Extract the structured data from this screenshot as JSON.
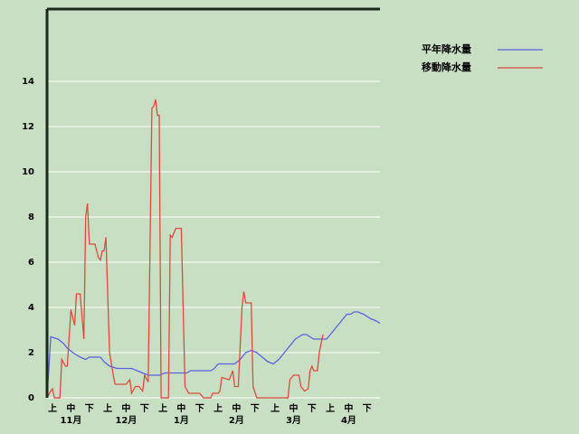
{
  "chart_data": {
    "type": "line",
    "series": [
      {
        "name": "平年降水量",
        "color": "#5a62e0",
        "x": [
          0,
          2,
          6,
          9,
          11,
          14,
          18,
          21,
          23,
          29,
          31,
          34,
          38,
          46,
          49,
          52,
          55,
          61,
          64,
          76,
          78,
          89,
          91,
          93,
          102,
          105,
          108,
          111,
          114,
          117,
          120,
          123,
          126,
          129,
          132,
          135,
          137,
          139,
          141,
          143,
          145,
          152,
          153,
          156,
          160,
          163,
          165,
          167,
          169,
          172,
          176,
          179,
          181
        ],
        "values": [
          0,
          2.7,
          2.6,
          2.4,
          2.2,
          2,
          1.8,
          1.7,
          1.8,
          1.8,
          1.6,
          1.4,
          1.3,
          1.3,
          1.2,
          1.1,
          1,
          1,
          1.1,
          1.1,
          1.2,
          1.2,
          1.3,
          1.5,
          1.5,
          1.7,
          2,
          2.1,
          2,
          1.8,
          1.6,
          1.5,
          1.7,
          2,
          2.3,
          2.6,
          2.7,
          2.8,
          2.8,
          2.7,
          2.6,
          2.6,
          2.7,
          3,
          3.4,
          3.7,
          3.7,
          3.8,
          3.8,
          3.7,
          3.5,
          3.4,
          3.3
        ]
      },
      {
        "name": "移動降水量",
        "color": "#e04a3c",
        "x": [
          0,
          2,
          3,
          4,
          7,
          8,
          10,
          11,
          13,
          15,
          16,
          18,
          20,
          21,
          22,
          23,
          26,
          28,
          29,
          30,
          31,
          32,
          34,
          36,
          37,
          43,
          45,
          46,
          48,
          50,
          52,
          53,
          55,
          57,
          58,
          59,
          60,
          61,
          62,
          66,
          67,
          68,
          70,
          73,
          75,
          77,
          83,
          85,
          89,
          90,
          93,
          94,
          95,
          99,
          101,
          102,
          104,
          106,
          107,
          108,
          111,
          112,
          114,
          131,
          132,
          134,
          137,
          138,
          140,
          142,
          143,
          144,
          145,
          147,
          148,
          150
        ],
        "values": [
          0,
          0.3,
          0.4,
          0,
          0,
          1.7,
          1.4,
          1.4,
          3.9,
          3.2,
          4.6,
          4.6,
          2.6,
          8,
          8.6,
          6.8,
          6.8,
          6.2,
          6.1,
          6.5,
          6.5,
          7.1,
          2,
          1,
          0.6,
          0.6,
          0.8,
          0.2,
          0.5,
          0.5,
          0.3,
          1,
          0.7,
          12.8,
          12.9,
          13.2,
          12.5,
          12.5,
          0,
          0,
          7.2,
          7.1,
          7.5,
          7.5,
          0.5,
          0.2,
          0.2,
          0,
          0,
          0.2,
          0.2,
          0.3,
          0.9,
          0.8,
          1.2,
          0.5,
          0.5,
          4,
          4.7,
          4.2,
          4.2,
          0.5,
          0,
          0,
          0.8,
          1,
          1,
          0.5,
          0.3,
          0.4,
          1.2,
          1.4,
          1.2,
          1.2,
          2,
          2.8
        ]
      }
    ],
    "xlim": [
      0,
      181
    ],
    "xticks": [
      {
        "value": 3,
        "label": "上"
      },
      {
        "value": 13,
        "label": "中"
      },
      {
        "value": 23,
        "label": "下"
      },
      {
        "value": 33,
        "label": "上"
      },
      {
        "value": 43,
        "label": "中"
      },
      {
        "value": 53,
        "label": "下"
      },
      {
        "value": 63,
        "label": "上"
      },
      {
        "value": 73,
        "label": "中"
      },
      {
        "value": 83,
        "label": "下"
      },
      {
        "value": 93,
        "label": "上"
      },
      {
        "value": 103,
        "label": "中"
      },
      {
        "value": 113,
        "label": "下"
      },
      {
        "value": 124,
        "label": "上"
      },
      {
        "value": 134,
        "label": "中"
      },
      {
        "value": 144,
        "label": "下"
      },
      {
        "value": 154,
        "label": "上"
      },
      {
        "value": 164,
        "label": "中"
      },
      {
        "value": 174,
        "label": "下"
      }
    ],
    "months": [
      "11月",
      "12月",
      "1月",
      "2月",
      "3月",
      "4月"
    ],
    "ylim": [
      0,
      17.2
    ],
    "yticks": [
      0,
      2,
      4,
      6,
      8,
      10,
      12,
      14
    ],
    "grid": true
  }
}
